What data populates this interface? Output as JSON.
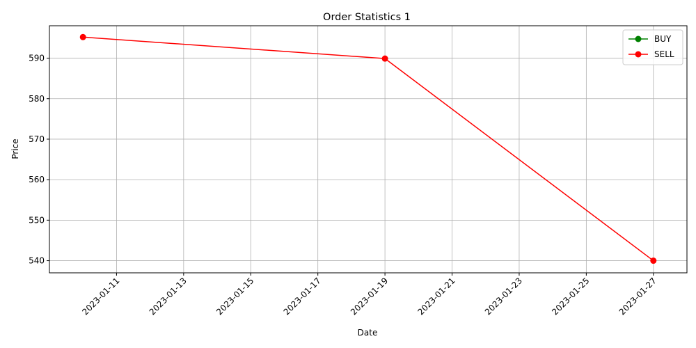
{
  "chart_data": {
    "type": "line",
    "title": "Order Statistics 1",
    "xlabel": "Date",
    "ylabel": "Price",
    "x_tick_labels": [
      "2023-01-11",
      "2023-01-13",
      "2023-01-15",
      "2023-01-17",
      "2023-01-19",
      "2023-01-21",
      "2023-01-23",
      "2023-01-25",
      "2023-01-27"
    ],
    "y_ticks": [
      540,
      550,
      560,
      570,
      580,
      590
    ],
    "xlim": [
      "2023-01-09",
      "2023-01-28"
    ],
    "ylim": [
      537,
      598
    ],
    "grid": true,
    "legend_position": "top-right",
    "series": [
      {
        "name": "BUY",
        "color": "#008000",
        "marker": "circle",
        "points": []
      },
      {
        "name": "SELL",
        "color": "#ff0000",
        "marker": "circle",
        "points": [
          {
            "x": "2023-01-10",
            "y": 595.2
          },
          {
            "x": "2023-01-19",
            "y": 589.9
          },
          {
            "x": "2023-01-27",
            "y": 540.0
          }
        ]
      }
    ]
  }
}
